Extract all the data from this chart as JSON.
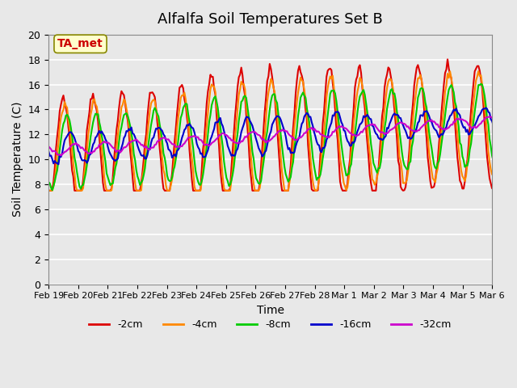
{
  "title": "Alfalfa Soil Temperatures Set B",
  "xlabel": "Time",
  "ylabel": "Soil Temperature (C)",
  "ylim": [
    0,
    20
  ],
  "yticks": [
    0,
    2,
    4,
    6,
    8,
    10,
    12,
    14,
    16,
    18,
    20
  ],
  "bg_color": "#e8e8e8",
  "plot_bg_color": "#e8e8e8",
  "grid_color": "#ffffff",
  "annotation_text": "TA_met",
  "annotation_color": "#cc0000",
  "annotation_bg": "#ffffcc",
  "series": [
    {
      "label": "-2cm",
      "color": "#dd0000",
      "lw": 1.5
    },
    {
      "label": "-4cm",
      "color": "#ff8800",
      "lw": 1.5
    },
    {
      "label": "-8cm",
      "color": "#00cc00",
      "lw": 1.5
    },
    {
      "label": "-16cm",
      "color": "#0000cc",
      "lw": 1.5
    },
    {
      "label": "-32cm",
      "color": "#cc00cc",
      "lw": 1.5
    }
  ],
  "tick_labels": [
    "Feb 19",
    "Feb 20",
    "Feb 21",
    "Feb 22",
    "Feb 23",
    "Feb 24",
    "Feb 25",
    "Feb 26",
    "Feb 27",
    "Feb 28",
    "Mar 1",
    "Mar 2",
    "Mar 3",
    "Mar 4",
    "Mar 5",
    "Mar 6"
  ],
  "n_days": 16
}
